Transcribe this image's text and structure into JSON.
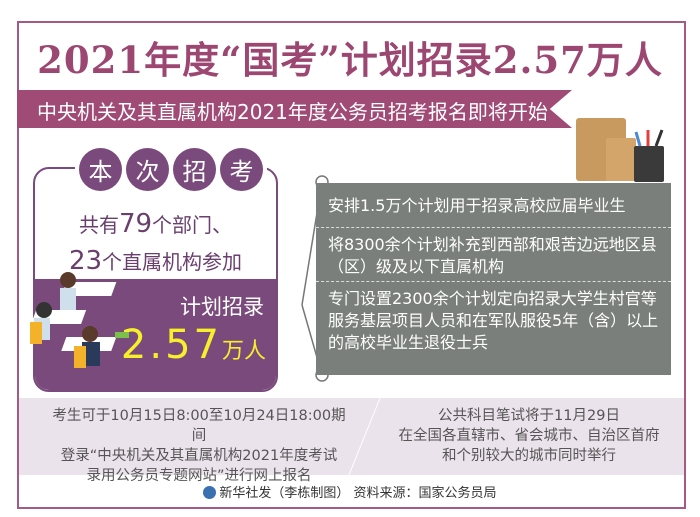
{
  "title": "2021年度“国考”计划招录2.57万人",
  "banner": "中央机关及其直属机构2021年度公务员招考报名即将开始",
  "card": {
    "tabs": [
      "本",
      "次",
      "招",
      "考"
    ],
    "line1_prefix": "共有",
    "line1_num": "79",
    "line1_suffix": "个部门、",
    "line2_num": "23",
    "line2_suffix": "个直属机构参加",
    "plan_label": "计划招录",
    "plan_num": "2.57",
    "plan_unit": "万人"
  },
  "points": [
    "安排1.5万个计划用于招录高校应届毕业生",
    "将8300余个计划补充到西部和艰苦边远地区县（区）级及以下直属机构",
    "专门设置2300余个计划定向招录大学生村官等服务基层项目人员和在军队服役5年（含）以上的高校毕业生退役士兵"
  ],
  "notes": {
    "left": [
      "考生可于10月15日8:00至10月24日18:00期间",
      "登录“中央机关及其直属机构2021年度考试",
      "录用公务员专题网站”进行网上报名"
    ],
    "right": [
      "公共科目笔试将于11月29日",
      "在全国各直辖市、省会城市、自治区首府",
      "和个别较大的城市同时举行"
    ]
  },
  "footer": "新华社发（李栋制图） 资料来源：国家公务员局",
  "colors": {
    "primary": "#9c4672",
    "card": "#7b4a7c",
    "gray": "#7a7f7b",
    "highlight": "#f6f02a"
  }
}
